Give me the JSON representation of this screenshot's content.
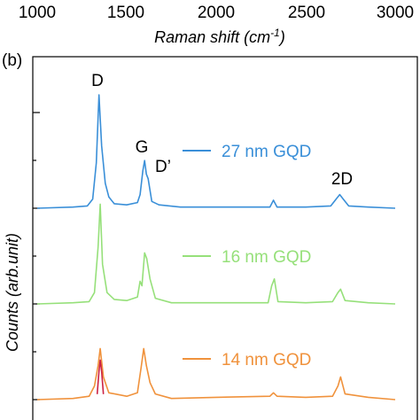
{
  "top_axis": {
    "tick_labels": [
      "1000",
      "1500",
      "2000",
      "2500",
      "3000"
    ],
    "ticks": [
      1000,
      1500,
      2000,
      2500,
      3000
    ],
    "xlabel": "Raman shift (cm",
    "xlabel_sup": "-1",
    "xlabel_close": ")"
  },
  "panel_label": "(b)",
  "chart_data": {
    "type": "line",
    "xlabel": "",
    "ylabel": "Counts (arb.unit)",
    "xlim": [
      1000,
      3000
    ],
    "x_ticks": [
      1000,
      1500,
      2000,
      2500,
      3000
    ],
    "peak_labels": [
      {
        "text": "D",
        "x": 1350
      },
      {
        "text": "G",
        "x": 1590
      },
      {
        "text": "D’",
        "x": 1660
      },
      {
        "text": "2D",
        "x": 2690
      }
    ],
    "series": [
      {
        "name": "27 nm GQD",
        "color": "#3a8fd8",
        "baseline": 0,
        "x": [
          1000,
          1200,
          1280,
          1310,
          1330,
          1345,
          1360,
          1380,
          1400,
          1430,
          1500,
          1560,
          1575,
          1590,
          1600,
          1610,
          1620,
          1640,
          1680,
          1800,
          2000,
          2300,
          2320,
          2340,
          2500,
          2640,
          2670,
          2690,
          2710,
          2740,
          2850,
          3000
        ],
        "y": [
          0,
          0.01,
          0.02,
          0.08,
          0.4,
          1.0,
          0.55,
          0.22,
          0.1,
          0.04,
          0.03,
          0.05,
          0.12,
          0.33,
          0.42,
          0.3,
          0.26,
          0.06,
          0.03,
          0.01,
          0.01,
          0.01,
          0.07,
          0.01,
          0.01,
          0.02,
          0.08,
          0.12,
          0.08,
          0.02,
          0.01,
          0.0
        ]
      },
      {
        "name": "16 nm GQD",
        "color": "#96e07a",
        "baseline": -1,
        "x": [
          1000,
          1200,
          1290,
          1320,
          1340,
          1352,
          1365,
          1390,
          1430,
          1500,
          1560,
          1575,
          1585,
          1600,
          1612,
          1630,
          1660,
          1750,
          2000,
          2290,
          2310,
          2325,
          2345,
          2500,
          2650,
          2680,
          2695,
          2720,
          2850,
          3000
        ],
        "y": [
          0,
          0.01,
          0.02,
          0.1,
          0.5,
          0.88,
          0.35,
          0.1,
          0.04,
          0.03,
          0.06,
          0.2,
          0.16,
          0.45,
          0.4,
          0.22,
          0.05,
          0.01,
          0.01,
          0.01,
          0.16,
          0.22,
          0.02,
          0.01,
          0.02,
          0.1,
          0.13,
          0.03,
          0.01,
          0.0
        ]
      },
      {
        "name": "14 nm GQD",
        "color": "#f0923c",
        "baseline": -2,
        "x": [
          1000,
          1200,
          1290,
          1320,
          1340,
          1352,
          1370,
          1400,
          1500,
          1560,
          1580,
          1595,
          1610,
          1630,
          1660,
          1750,
          2000,
          2300,
          2320,
          2340,
          2500,
          2650,
          2680,
          2695,
          2720,
          2850,
          3000
        ],
        "y": [
          0,
          0.01,
          0.03,
          0.12,
          0.3,
          0.45,
          0.2,
          0.06,
          0.03,
          0.06,
          0.28,
          0.45,
          0.3,
          0.15,
          0.05,
          0.01,
          0.02,
          0.03,
          0.06,
          0.03,
          0.02,
          0.03,
          0.12,
          0.2,
          0.05,
          0.02,
          0.0
        ]
      },
      {
        "name": "",
        "color": "#cc2244",
        "baseline": -3,
        "x": [
          1335,
          1345,
          1352,
          1360,
          1370
        ],
        "y": [
          0.9,
          1.1,
          1.2,
          1.1,
          0.9
        ]
      }
    ]
  }
}
